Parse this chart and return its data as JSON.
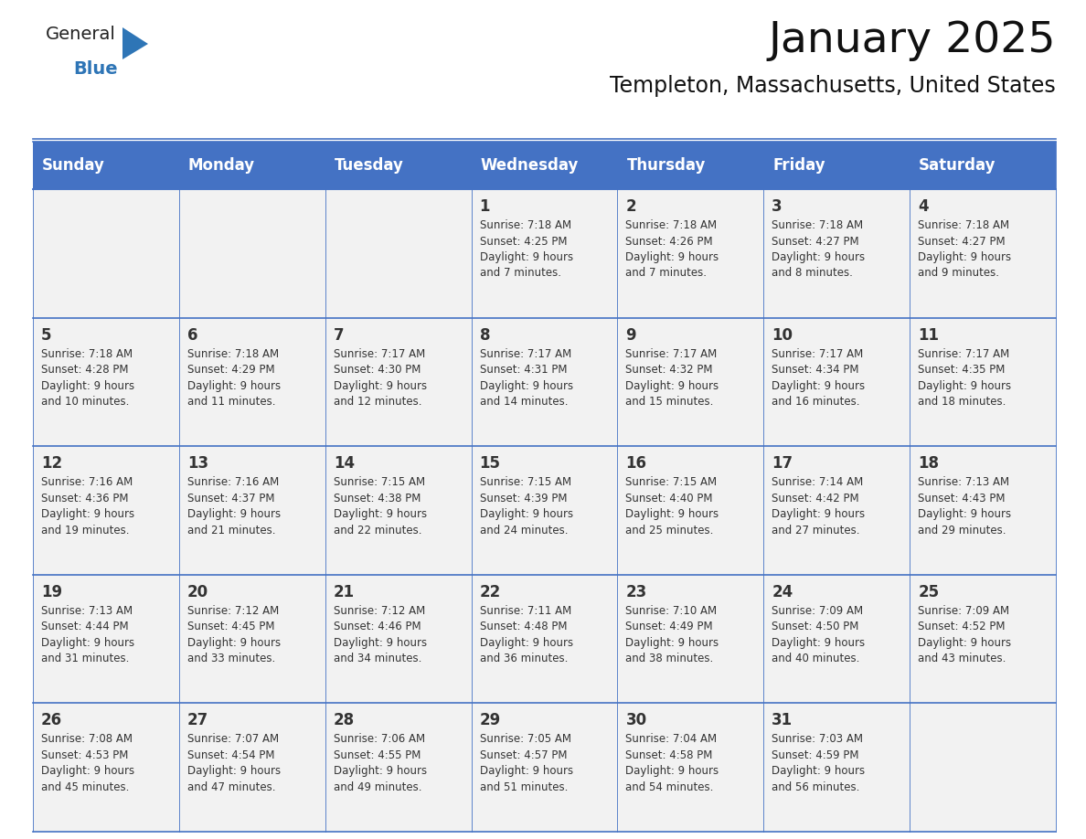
{
  "title": "January 2025",
  "subtitle": "Templeton, Massachusetts, United States",
  "days_of_week": [
    "Sunday",
    "Monday",
    "Tuesday",
    "Wednesday",
    "Thursday",
    "Friday",
    "Saturday"
  ],
  "header_bg": "#4472C4",
  "header_text_color": "#FFFFFF",
  "row_bg": "#F2F2F2",
  "text_color": "#333333",
  "grid_line_color": "#4472C4",
  "logo_general_color": "#222222",
  "logo_blue_color": "#2E75B6",
  "calendar_data": [
    [
      {
        "day": "",
        "sunrise": "",
        "sunset": "",
        "daylight_hours": "",
        "daylight_minutes": ""
      },
      {
        "day": "",
        "sunrise": "",
        "sunset": "",
        "daylight_hours": "",
        "daylight_minutes": ""
      },
      {
        "day": "",
        "sunrise": "",
        "sunset": "",
        "daylight_hours": "",
        "daylight_minutes": ""
      },
      {
        "day": "1",
        "sunrise": "7:18 AM",
        "sunset": "4:25 PM",
        "daylight_hours": "9",
        "daylight_minutes": "7"
      },
      {
        "day": "2",
        "sunrise": "7:18 AM",
        "sunset": "4:26 PM",
        "daylight_hours": "9",
        "daylight_minutes": "7"
      },
      {
        "day": "3",
        "sunrise": "7:18 AM",
        "sunset": "4:27 PM",
        "daylight_hours": "9",
        "daylight_minutes": "8"
      },
      {
        "day": "4",
        "sunrise": "7:18 AM",
        "sunset": "4:27 PM",
        "daylight_hours": "9",
        "daylight_minutes": "9"
      }
    ],
    [
      {
        "day": "5",
        "sunrise": "7:18 AM",
        "sunset": "4:28 PM",
        "daylight_hours": "9",
        "daylight_minutes": "10"
      },
      {
        "day": "6",
        "sunrise": "7:18 AM",
        "sunset": "4:29 PM",
        "daylight_hours": "9",
        "daylight_minutes": "11"
      },
      {
        "day": "7",
        "sunrise": "7:17 AM",
        "sunset": "4:30 PM",
        "daylight_hours": "9",
        "daylight_minutes": "12"
      },
      {
        "day": "8",
        "sunrise": "7:17 AM",
        "sunset": "4:31 PM",
        "daylight_hours": "9",
        "daylight_minutes": "14"
      },
      {
        "day": "9",
        "sunrise": "7:17 AM",
        "sunset": "4:32 PM",
        "daylight_hours": "9",
        "daylight_minutes": "15"
      },
      {
        "day": "10",
        "sunrise": "7:17 AM",
        "sunset": "4:34 PM",
        "daylight_hours": "9",
        "daylight_minutes": "16"
      },
      {
        "day": "11",
        "sunrise": "7:17 AM",
        "sunset": "4:35 PM",
        "daylight_hours": "9",
        "daylight_minutes": "18"
      }
    ],
    [
      {
        "day": "12",
        "sunrise": "7:16 AM",
        "sunset": "4:36 PM",
        "daylight_hours": "9",
        "daylight_minutes": "19"
      },
      {
        "day": "13",
        "sunrise": "7:16 AM",
        "sunset": "4:37 PM",
        "daylight_hours": "9",
        "daylight_minutes": "21"
      },
      {
        "day": "14",
        "sunrise": "7:15 AM",
        "sunset": "4:38 PM",
        "daylight_hours": "9",
        "daylight_minutes": "22"
      },
      {
        "day": "15",
        "sunrise": "7:15 AM",
        "sunset": "4:39 PM",
        "daylight_hours": "9",
        "daylight_minutes": "24"
      },
      {
        "day": "16",
        "sunrise": "7:15 AM",
        "sunset": "4:40 PM",
        "daylight_hours": "9",
        "daylight_minutes": "25"
      },
      {
        "day": "17",
        "sunrise": "7:14 AM",
        "sunset": "4:42 PM",
        "daylight_hours": "9",
        "daylight_minutes": "27"
      },
      {
        "day": "18",
        "sunrise": "7:13 AM",
        "sunset": "4:43 PM",
        "daylight_hours": "9",
        "daylight_minutes": "29"
      }
    ],
    [
      {
        "day": "19",
        "sunrise": "7:13 AM",
        "sunset": "4:44 PM",
        "daylight_hours": "9",
        "daylight_minutes": "31"
      },
      {
        "day": "20",
        "sunrise": "7:12 AM",
        "sunset": "4:45 PM",
        "daylight_hours": "9",
        "daylight_minutes": "33"
      },
      {
        "day": "21",
        "sunrise": "7:12 AM",
        "sunset": "4:46 PM",
        "daylight_hours": "9",
        "daylight_minutes": "34"
      },
      {
        "day": "22",
        "sunrise": "7:11 AM",
        "sunset": "4:48 PM",
        "daylight_hours": "9",
        "daylight_minutes": "36"
      },
      {
        "day": "23",
        "sunrise": "7:10 AM",
        "sunset": "4:49 PM",
        "daylight_hours": "9",
        "daylight_minutes": "38"
      },
      {
        "day": "24",
        "sunrise": "7:09 AM",
        "sunset": "4:50 PM",
        "daylight_hours": "9",
        "daylight_minutes": "40"
      },
      {
        "day": "25",
        "sunrise": "7:09 AM",
        "sunset": "4:52 PM",
        "daylight_hours": "9",
        "daylight_minutes": "43"
      }
    ],
    [
      {
        "day": "26",
        "sunrise": "7:08 AM",
        "sunset": "4:53 PM",
        "daylight_hours": "9",
        "daylight_minutes": "45"
      },
      {
        "day": "27",
        "sunrise": "7:07 AM",
        "sunset": "4:54 PM",
        "daylight_hours": "9",
        "daylight_minutes": "47"
      },
      {
        "day": "28",
        "sunrise": "7:06 AM",
        "sunset": "4:55 PM",
        "daylight_hours": "9",
        "daylight_minutes": "49"
      },
      {
        "day": "29",
        "sunrise": "7:05 AM",
        "sunset": "4:57 PM",
        "daylight_hours": "9",
        "daylight_minutes": "51"
      },
      {
        "day": "30",
        "sunrise": "7:04 AM",
        "sunset": "4:58 PM",
        "daylight_hours": "9",
        "daylight_minutes": "54"
      },
      {
        "day": "31",
        "sunrise": "7:03 AM",
        "sunset": "4:59 PM",
        "daylight_hours": "9",
        "daylight_minutes": "56"
      },
      {
        "day": "",
        "sunrise": "",
        "sunset": "",
        "daylight_hours": "",
        "daylight_minutes": ""
      }
    ]
  ]
}
